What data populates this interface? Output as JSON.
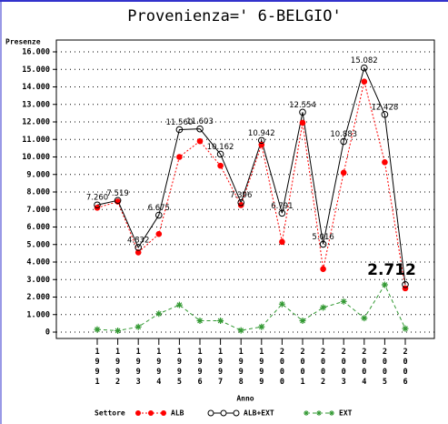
{
  "chart_data": {
    "type": "line",
    "title": "Provenienza=' 6-BELGIO'",
    "y_label": "Presenze",
    "x_label": "Anno",
    "legend_title": "Settore",
    "categories": [
      "1991",
      "1992",
      "1993",
      "1994",
      "1995",
      "1996",
      "1997",
      "1998",
      "1999",
      "2000",
      "2001",
      "2002",
      "2003",
      "2004",
      "2005",
      "2006"
    ],
    "series": [
      {
        "name": "ALB",
        "color": "#ff0000",
        "marker": "dot",
        "values": [
          7100,
          7450,
          4550,
          5600,
          10000,
          10900,
          9500,
          7250,
          10700,
          5150,
          11950,
          3600,
          9100,
          14300,
          9700,
          2500
        ]
      },
      {
        "name": "ALB+EXT",
        "color": "#000000",
        "marker": "circle",
        "values": [
          7260,
          7519,
          4832,
          6675,
          11560,
          11603,
          10162,
          7396,
          10942,
          6791,
          12554,
          5016,
          10883,
          15082,
          12428,
          2712
        ],
        "value_labels": [
          "7.260",
          "7.519",
          "4.832",
          "6.675",
          "11.560",
          "11.603",
          "10.162",
          "7.396",
          "10.942",
          "6.791",
          "12.554",
          "5.016",
          "10.883",
          "15.082",
          "12.428",
          "2.712"
        ]
      },
      {
        "name": "EXT",
        "color": "#339933",
        "marker": "star",
        "values": [
          150,
          80,
          300,
          1050,
          1550,
          650,
          650,
          100,
          300,
          1600,
          650,
          1400,
          1750,
          800,
          2700,
          200
        ]
      }
    ],
    "ylim": [
      0,
      16000
    ],
    "yticks": [
      0,
      {
        "value": 1000,
        "label": "1.000"
      },
      {
        "value": 2000,
        "label": "2.000"
      },
      {
        "value": 3000,
        "label": "3.000"
      },
      {
        "value": 4000,
        "label": "4.000"
      },
      {
        "value": 5000,
        "label": "5.000"
      },
      {
        "value": 6000,
        "label": "6.000"
      },
      {
        "value": 7000,
        "label": "7.000"
      },
      {
        "value": 8000,
        "label": "8.000"
      },
      {
        "value": 9000,
        "label": "9.000"
      },
      {
        "value": 10000,
        "label": "10.000"
      },
      {
        "value": 11000,
        "label": "11.000"
      },
      {
        "value": 12000,
        "label": "12.000"
      },
      {
        "value": 13000,
        "label": "13.000"
      },
      {
        "value": 14000,
        "label": "14.000"
      },
      {
        "value": 15000,
        "label": "15.000"
      },
      {
        "value": 16000,
        "label": "16.000"
      }
    ],
    "grid": true
  }
}
